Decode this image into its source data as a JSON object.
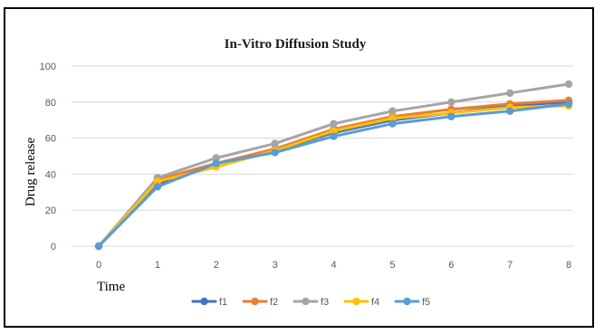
{
  "chart_data": {
    "type": "line",
    "title": "In-Vitro Diffusion Study",
    "xlabel": "Time",
    "ylabel": "Drug release",
    "x": [
      0,
      1,
      2,
      3,
      4,
      5,
      6,
      7,
      8
    ],
    "xticks": [
      "0",
      "1",
      "2",
      "3",
      "4",
      "5",
      "6",
      "7",
      "8"
    ],
    "ylim": [
      0,
      100
    ],
    "yticks": [
      "0",
      "20",
      "40",
      "60",
      "80",
      "100"
    ],
    "grid": true,
    "legend": "bottom",
    "series": [
      {
        "name": "f1",
        "color": "#4472C4",
        "values": [
          0,
          34,
          46,
          53,
          63,
          70,
          74,
          78,
          80
        ]
      },
      {
        "name": "f2",
        "color": "#ED7D31",
        "values": [
          0,
          37,
          46,
          54,
          65,
          72,
          76,
          79,
          81
        ]
      },
      {
        "name": "f3",
        "color": "#A5A5A5",
        "values": [
          0,
          38,
          49,
          57,
          68,
          75,
          80,
          85,
          90
        ]
      },
      {
        "name": "f4",
        "color": "#FFC000",
        "values": [
          0,
          36,
          44,
          53,
          64,
          71,
          74,
          77,
          78
        ]
      },
      {
        "name": "f5",
        "color": "#5B9BD5",
        "values": [
          0,
          33,
          46,
          52,
          61,
          68,
          72,
          75,
          79
        ]
      }
    ]
  }
}
